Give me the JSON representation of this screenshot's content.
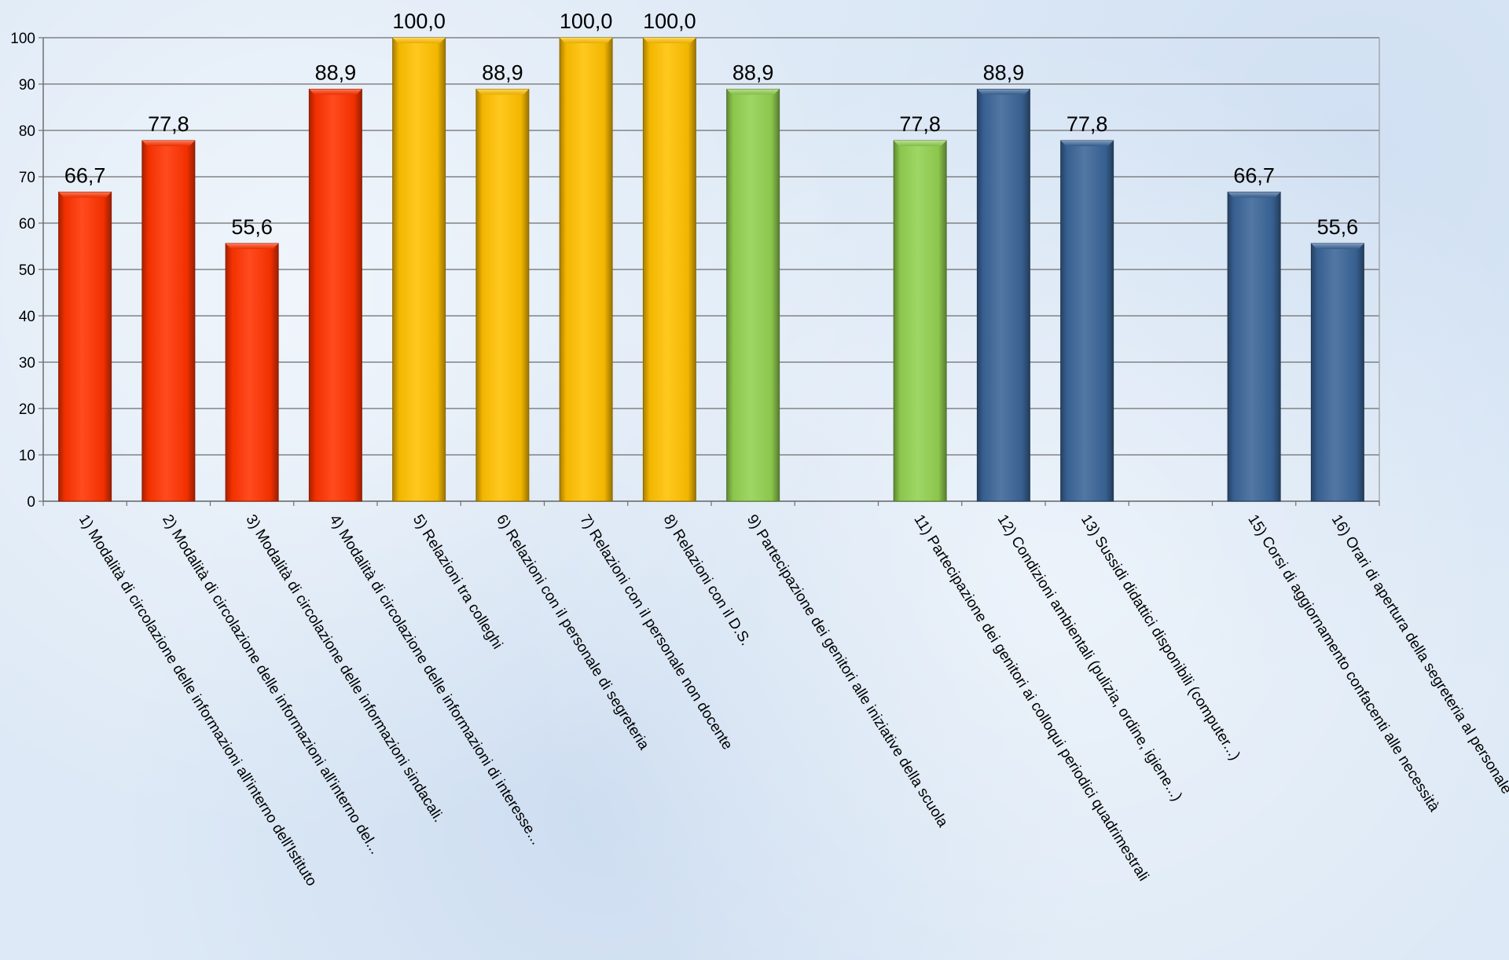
{
  "chart_data": {
    "type": "bar",
    "title": "",
    "xlabel": "",
    "ylabel": "",
    "ylim": [
      0,
      100
    ],
    "yticks": [
      0,
      10,
      20,
      30,
      40,
      50,
      60,
      70,
      80,
      90,
      100
    ],
    "grid": true,
    "legend": "none",
    "bars": [
      {
        "label": "1) Modalità  di circolazione delle informazioni all'interno dell'Istituto",
        "value": 66.7,
        "value_label": "66,7",
        "color": "#ff3300"
      },
      {
        "label": "2) Modalità di circolazione delle informazioni all'interno del...",
        "value": 77.8,
        "value_label": "77,8",
        "color": "#ff3300"
      },
      {
        "label": "3) Modalità di circolazione delle informazioni sindacali.",
        "value": 55.6,
        "value_label": "55,6",
        "color": "#ff3300"
      },
      {
        "label": "4) Modalità di circolazione delle informazioni  di interesse...",
        "value": 88.9,
        "value_label": "88,9",
        "color": "#ff3300"
      },
      {
        "label": "5) Relazioni tra colleghi",
        "value": 100.0,
        "value_label": "100,0",
        "color": "#ffc000"
      },
      {
        "label": "6) Relazioni con il personale di segreteria",
        "value": 88.9,
        "value_label": "88,9",
        "color": "#ffc000"
      },
      {
        "label": "7) Relazioni  con il personale non docente",
        "value": 100.0,
        "value_label": "100,0",
        "color": "#ffc000"
      },
      {
        "label": "8) Relazioni  con il D.S.",
        "value": 100.0,
        "value_label": "100,0",
        "color": "#ffc000"
      },
      {
        "label": "9) Partecipazione dei genitori alle iniziative della scuola",
        "value": 88.9,
        "value_label": "88,9",
        "color": "#92d050"
      },
      {
        "label": "",
        "value": null,
        "value_label": "",
        "color": ""
      },
      {
        "label": "11) Partecipazione dei genitori  ai colloqui periodici quadrimestrali",
        "value": 77.8,
        "value_label": "77,8",
        "color": "#92d050"
      },
      {
        "label": "12) Condizioni ambientali (pulizia, ordine, igiene...)",
        "value": 88.9,
        "value_label": "88,9",
        "color": "#3a6598"
      },
      {
        "label": "13) Sussidi didattici  disponibili (computer...)",
        "value": 77.8,
        "value_label": "77,8",
        "color": "#3a6598"
      },
      {
        "label": "",
        "value": null,
        "value_label": "",
        "color": ""
      },
      {
        "label": "15) Corsi di aggiornamento confacenti alle necessità",
        "value": 66.7,
        "value_label": "66,7",
        "color": "#3a6598"
      },
      {
        "label": "16) Orari di apertura della segreteria al personale",
        "value": 55.6,
        "value_label": "55,6",
        "color": "#3a6598"
      }
    ]
  }
}
